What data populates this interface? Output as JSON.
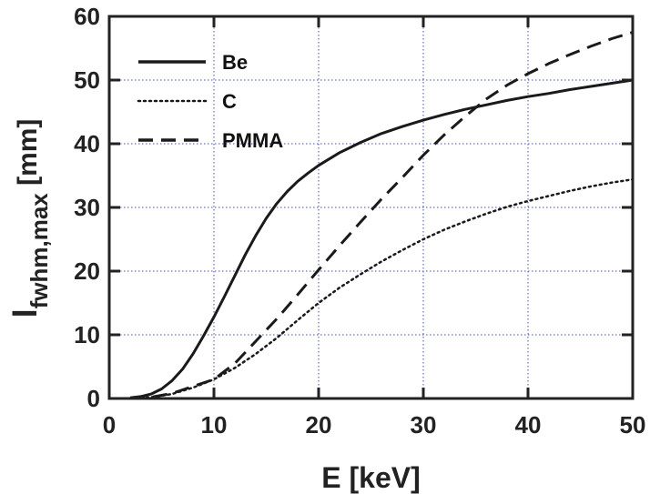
{
  "chart_data": {
    "type": "line",
    "xlabel": "E [keV]",
    "ylabel": {
      "main": "l",
      "sub": "fwhm,max",
      "unit": " [mm]"
    },
    "xlim": [
      0,
      50
    ],
    "ylim": [
      0,
      60
    ],
    "xticks": [
      0,
      10,
      20,
      30,
      40,
      50
    ],
    "yticks": [
      0,
      10,
      20,
      30,
      40,
      50,
      60
    ],
    "grid": true,
    "legend_position": "top-left",
    "series": [
      {
        "name": "Be",
        "style": "solid",
        "x": [
          2,
          3,
          4,
          5,
          6,
          7,
          8,
          9,
          10,
          11,
          12,
          13,
          14,
          15,
          16,
          17,
          18,
          19,
          20,
          22,
          24,
          26,
          28,
          30,
          32,
          34,
          36,
          38,
          40,
          42,
          44,
          46,
          48,
          50
        ],
        "y": [
          0.1,
          0.3,
          0.7,
          1.5,
          2.8,
          4.6,
          7.0,
          9.8,
          12.8,
          16.0,
          19.3,
          22.6,
          25.6,
          28.3,
          30.6,
          32.5,
          34.1,
          35.4,
          36.6,
          38.6,
          40.2,
          41.6,
          42.7,
          43.7,
          44.6,
          45.4,
          46.1,
          46.8,
          47.4,
          47.9,
          48.5,
          49.0,
          49.5,
          50.0
        ]
      },
      {
        "name": "C",
        "style": "dotted",
        "x": [
          2,
          4,
          6,
          8,
          10,
          12,
          14,
          16,
          18,
          20,
          22,
          24,
          26,
          28,
          30,
          32,
          34,
          36,
          38,
          40,
          42,
          44,
          46,
          48,
          50
        ],
        "y": [
          0.0,
          0.2,
          0.7,
          1.7,
          3.0,
          4.8,
          7.0,
          9.5,
          12.3,
          15.0,
          17.4,
          19.5,
          21.5,
          23.3,
          25.0,
          26.5,
          27.8,
          29.0,
          30.1,
          31.0,
          31.8,
          32.6,
          33.3,
          33.9,
          34.4
        ]
      },
      {
        "name": "PMMA",
        "style": "dashed",
        "x": [
          2,
          4,
          6,
          8,
          10,
          12,
          14,
          16,
          18,
          20,
          22,
          24,
          26,
          28,
          30,
          32,
          34,
          36,
          38,
          40,
          42,
          44,
          46,
          48,
          50
        ],
        "y": [
          0.0,
          0.2,
          0.8,
          1.9,
          3.0,
          5.5,
          9.0,
          12.5,
          16.3,
          20.2,
          24.0,
          27.7,
          31.3,
          34.7,
          38.2,
          41.4,
          44.3,
          47.0,
          49.2,
          51.0,
          52.6,
          54.0,
          55.3,
          56.5,
          57.5
        ]
      }
    ]
  },
  "colors": {
    "line": "#1a1a1a",
    "grid": "#4455aa",
    "frame": "#222222"
  }
}
